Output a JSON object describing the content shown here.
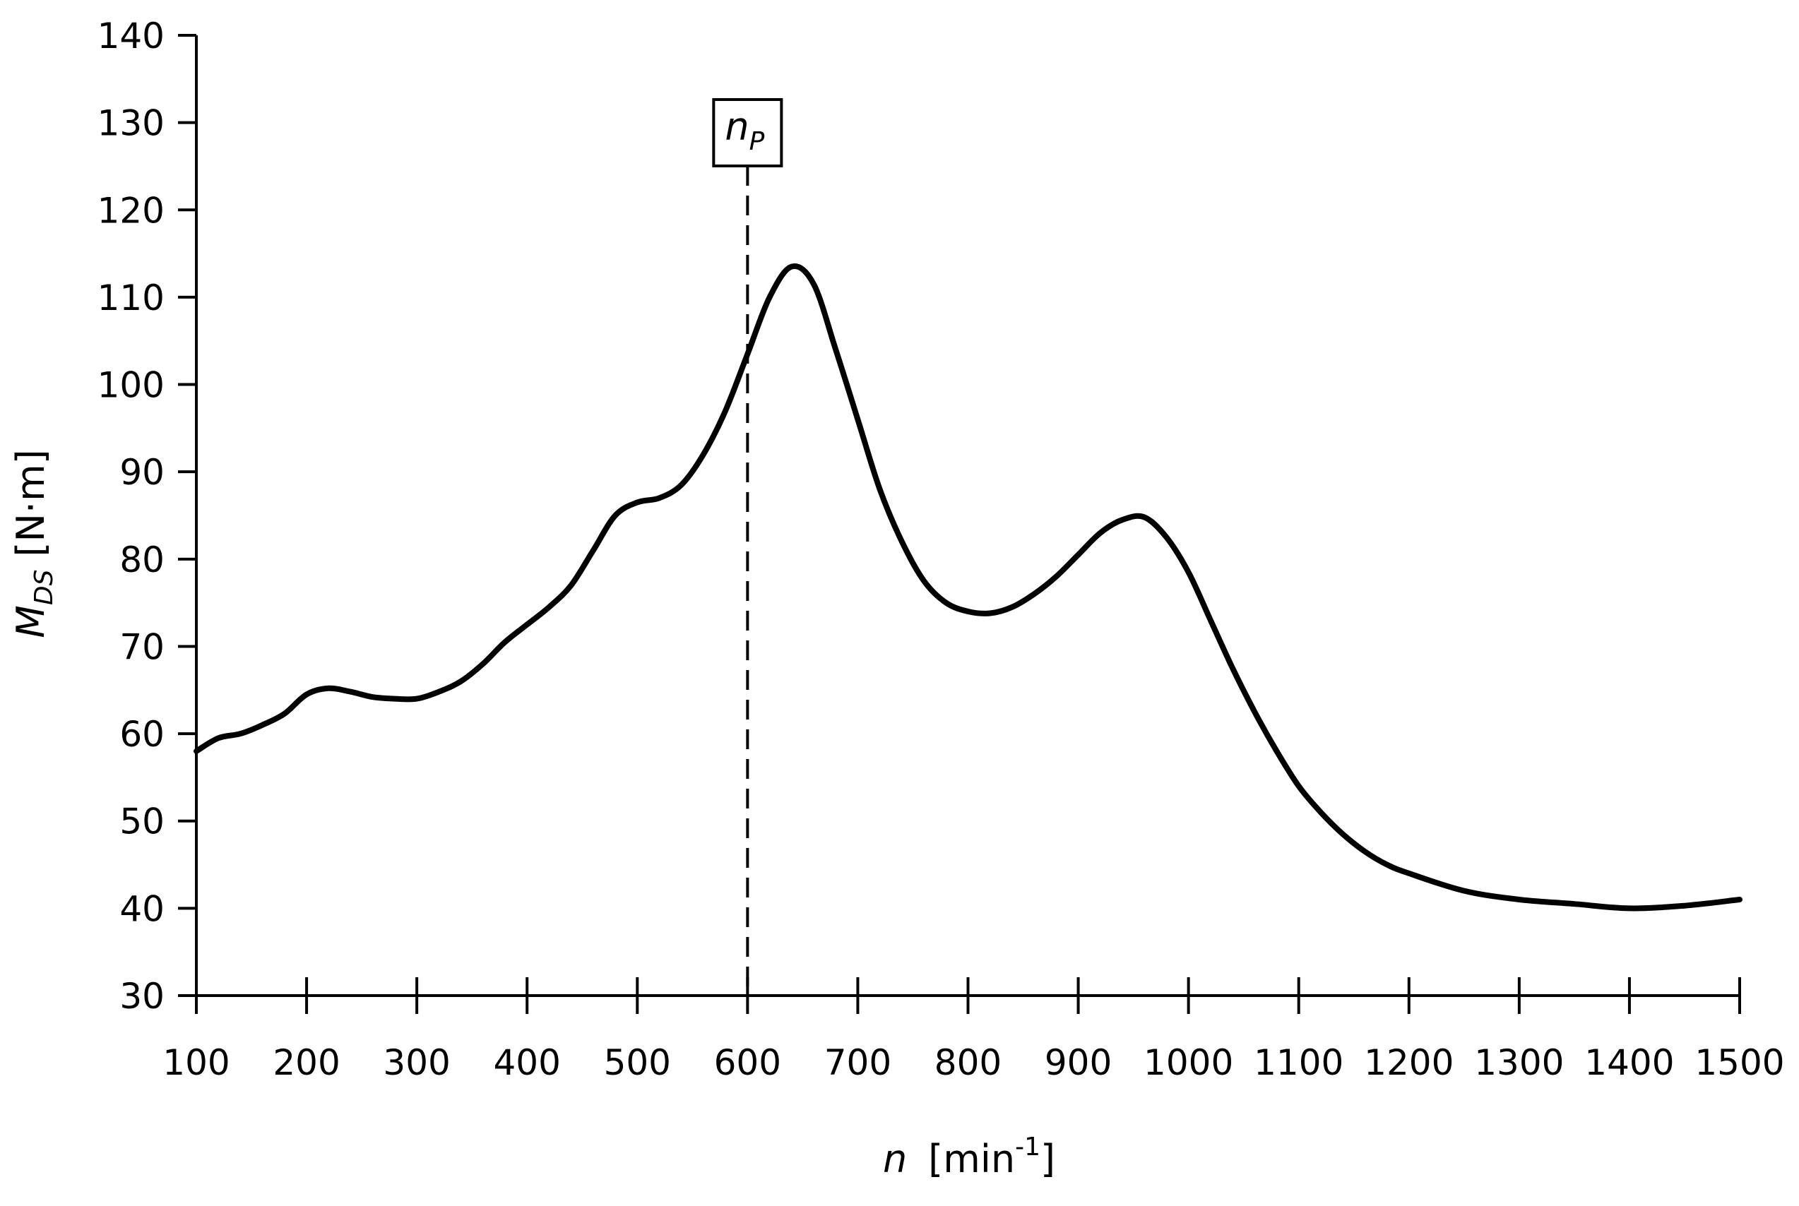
{
  "chart_data": {
    "type": "line",
    "xlabel": {
      "symbol": "n",
      "unit_open": "[min",
      "unit_sup": "-1",
      "unit_close": "]"
    },
    "ylabel": {
      "symbol": "M",
      "subscript": "DS",
      "unit": "[N·m]"
    },
    "xlim": [
      100,
      1500
    ],
    "ylim": [
      30,
      140
    ],
    "x_ticks": [
      100,
      200,
      300,
      400,
      500,
      600,
      700,
      800,
      900,
      1000,
      1100,
      1200,
      1300,
      1400,
      1500
    ],
    "y_ticks": [
      30,
      40,
      50,
      60,
      70,
      80,
      90,
      100,
      110,
      120,
      130,
      140
    ],
    "grid": false,
    "legend": "none",
    "marker": {
      "x": 600,
      "label": "n",
      "label_sub": "P",
      "style": "dashed"
    },
    "series": [
      {
        "color": "#000000",
        "x": [
          100,
          120,
          140,
          160,
          180,
          200,
          220,
          240,
          260,
          280,
          300,
          320,
          340,
          360,
          380,
          400,
          420,
          440,
          460,
          480,
          500,
          520,
          540,
          560,
          580,
          600,
          620,
          640,
          660,
          680,
          700,
          720,
          740,
          760,
          780,
          800,
          820,
          840,
          860,
          880,
          900,
          920,
          940,
          960,
          980,
          1000,
          1020,
          1040,
          1060,
          1080,
          1100,
          1120,
          1140,
          1160,
          1180,
          1200,
          1250,
          1300,
          1350,
          1400,
          1450,
          1500
        ],
        "y": [
          58,
          59.5,
          60,
          61,
          62.3,
          64.5,
          65.2,
          64.8,
          64.2,
          64,
          64,
          64.8,
          66,
          68,
          70.5,
          72.5,
          74.5,
          77,
          81,
          85,
          86.5,
          87,
          88.5,
          92,
          97,
          103.5,
          110,
          113.5,
          111.5,
          104,
          96,
          88,
          82,
          77.5,
          75,
          74,
          73.8,
          74.5,
          76,
          78,
          80.5,
          83,
          84.5,
          84.8,
          82.5,
          78.5,
          73,
          67.5,
          62.5,
          58,
          54,
          51,
          48.5,
          46.5,
          45,
          44,
          42,
          41,
          40.5,
          40,
          40.3,
          41
        ]
      }
    ]
  }
}
